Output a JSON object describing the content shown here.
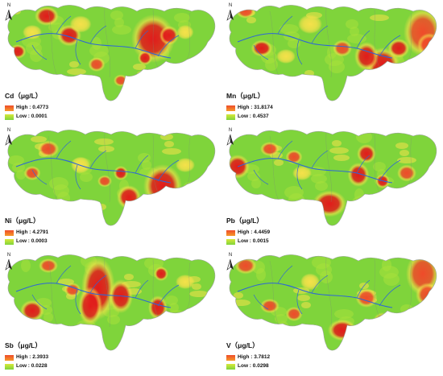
{
  "north_label": "N",
  "colors": {
    "high": "#ef4b2a",
    "mid": "#f5e14a",
    "low": "#7fd43b",
    "river": "#2d66d6",
    "hot": "#e21b1b"
  },
  "panels": [
    {
      "element": "Cd",
      "unit": "（μg/L）",
      "high_prefix": "High : ",
      "high": "0.4773",
      "low_prefix": "Low : ",
      "low": "0.0001"
    },
    {
      "element": "Mn",
      "unit": "（μg/L）",
      "high_prefix": "High : ",
      "high": "31.8174",
      "low_prefix": "Low : ",
      "low": "0.4537"
    },
    {
      "element": "Ni",
      "unit": "（μg/L）",
      "high_prefix": "High : ",
      "high": "4.2791",
      "low_prefix": "Low : ",
      "low": "0.0003"
    },
    {
      "element": "Pb",
      "unit": "（μg/L）",
      "high_prefix": "High : ",
      "high": "4.4459",
      "low_prefix": "Low : ",
      "low": "0.0015"
    },
    {
      "element": "Sb",
      "unit": "（μg/L）",
      "high_prefix": "High : ",
      "high": "2.3933",
      "low_prefix": "Low : ",
      "low": "0.0228"
    },
    {
      "element": "V",
      "unit": "（μg/L）",
      "high_prefix": "High : ",
      "high": "3.7812",
      "low_prefix": "Low : ",
      "low": "0.0298"
    }
  ]
}
